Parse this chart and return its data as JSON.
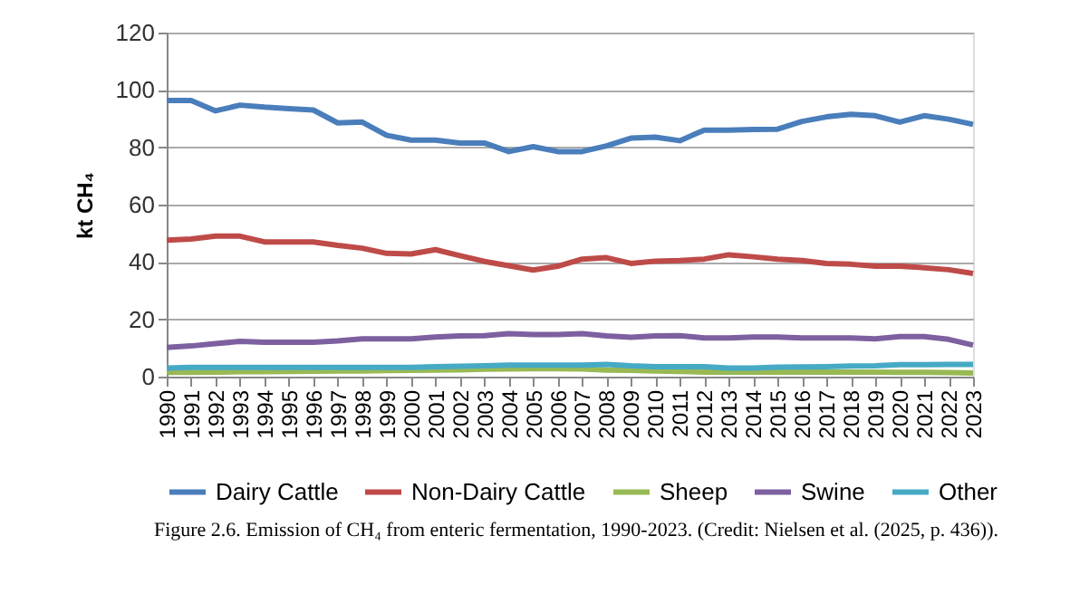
{
  "chart_data": {
    "type": "line",
    "ylabel": "kt CH₄",
    "categories": [
      "1990",
      "1991",
      "1992",
      "1993",
      "1994",
      "1995",
      "1996",
      "1997",
      "1998",
      "1999",
      "2000",
      "2001",
      "2002",
      "2003",
      "2004",
      "2005",
      "2006",
      "2007",
      "2008",
      "2009",
      "2010",
      "2011",
      "2012",
      "2013",
      "2014",
      "2015",
      "2016",
      "2017",
      "2018",
      "2019",
      "2020",
      "2021",
      "2022",
      "2023"
    ],
    "series": [
      {
        "name": "Dairy Cattle",
        "color": "#4a7ebb",
        "values": [
          96.3,
          96.3,
          92.7,
          94.7,
          94,
          93.5,
          93,
          88.5,
          88.8,
          84.2,
          82.5,
          82.5,
          81.5,
          81.5,
          78.5,
          80.2,
          78.5,
          78.5,
          80.5,
          83.2,
          83.5,
          82.3,
          86,
          86,
          86.2,
          86.3,
          89,
          90.6,
          91.5,
          91,
          88.8,
          91,
          89.8,
          88
        ]
      },
      {
        "name": "Non-Dairy Cattle",
        "color": "#be4b48",
        "values": [
          47.6,
          48,
          49,
          49,
          47,
          47,
          47,
          45.8,
          44.8,
          43,
          42.8,
          44.3,
          42.2,
          40.2,
          38.7,
          37.2,
          38.5,
          41,
          41.5,
          39.5,
          40.3,
          40.5,
          41,
          42.5,
          41.8,
          41,
          40.5,
          39.5,
          39.2,
          38.5,
          38.5,
          38,
          37.3,
          36
        ]
      },
      {
        "name": "Sheep",
        "color": "#98b954",
        "values": [
          1.5,
          1.5,
          1.6,
          1.7,
          1.7,
          1.8,
          1.9,
          2,
          2,
          2.1,
          2.2,
          2.3,
          2.4,
          2.6,
          2.7,
          2.8,
          2.8,
          2.7,
          2.3,
          2.2,
          2,
          1.8,
          1.6,
          1.6,
          1.6,
          1.6,
          1.6,
          1.6,
          1.6,
          1.6,
          1.5,
          1.5,
          1.4,
          1.3
        ]
      },
      {
        "name": "Swine",
        "color": "#7d60a0",
        "values": [
          10.2,
          10.7,
          11.5,
          12.3,
          12,
          12,
          12,
          12.5,
          13.2,
          13.2,
          13.2,
          13.8,
          14.2,
          14.3,
          15,
          14.7,
          14.7,
          15,
          14.2,
          13.7,
          14.2,
          14.3,
          13.5,
          13.5,
          13.8,
          13.8,
          13.5,
          13.5,
          13.5,
          13.2,
          14,
          14,
          13,
          11
        ]
      },
      {
        "name": "Other",
        "color": "#46aac5",
        "values": [
          3,
          3.2,
          3.2,
          3.2,
          3.2,
          3.2,
          3.2,
          3.2,
          3.2,
          3.2,
          3.2,
          3.5,
          3.6,
          3.8,
          4,
          4,
          4,
          4,
          4.3,
          3.8,
          3.5,
          3.5,
          3.5,
          3,
          3,
          3.3,
          3.4,
          3.5,
          3.7,
          3.8,
          4.2,
          4.2,
          4.3,
          4.3
        ]
      }
    ],
    "ylim": [
      0,
      120
    ],
    "yticks": [
      0,
      20,
      40,
      60,
      80,
      100,
      120
    ],
    "grid": "y",
    "legend": "bottom",
    "marker": "none",
    "line_style": "solid",
    "annotations": [
      "Figure 2.6. Emission of CH₄ from enteric fermentation, 1990-2023. (Credit: Nielsen et al. (2025, p. 436))."
    ]
  }
}
